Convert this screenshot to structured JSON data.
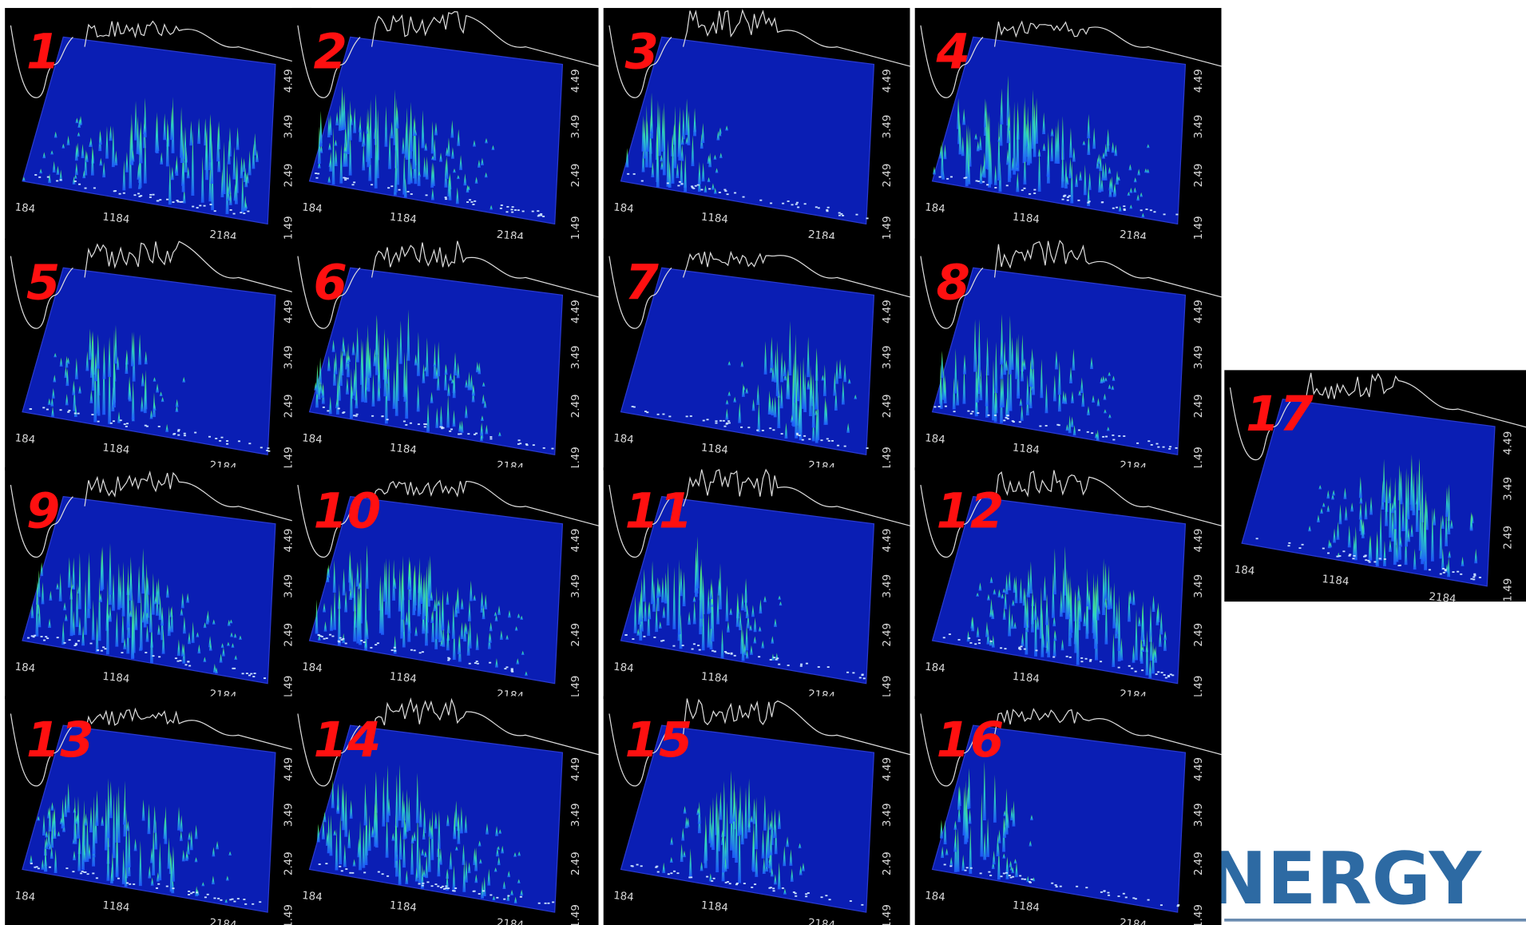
{
  "panels": [
    {
      "label": "1"
    },
    {
      "label": "2"
    },
    {
      "label": "3"
    },
    {
      "label": "4"
    },
    {
      "label": "5"
    },
    {
      "label": "6"
    },
    {
      "label": "7"
    },
    {
      "label": "8"
    },
    {
      "label": "9"
    },
    {
      "label": "10"
    },
    {
      "label": "11"
    },
    {
      "label": "12"
    },
    {
      "label": "13"
    },
    {
      "label": "14"
    },
    {
      "label": "15"
    },
    {
      "label": "16"
    },
    {
      "label": "17"
    }
  ],
  "x_ticks": [
    "184",
    "1184",
    "2184"
  ],
  "y_ticks": [
    "1.49",
    "2.49",
    "3.49",
    "4.49"
  ],
  "logo": "NERGY"
}
